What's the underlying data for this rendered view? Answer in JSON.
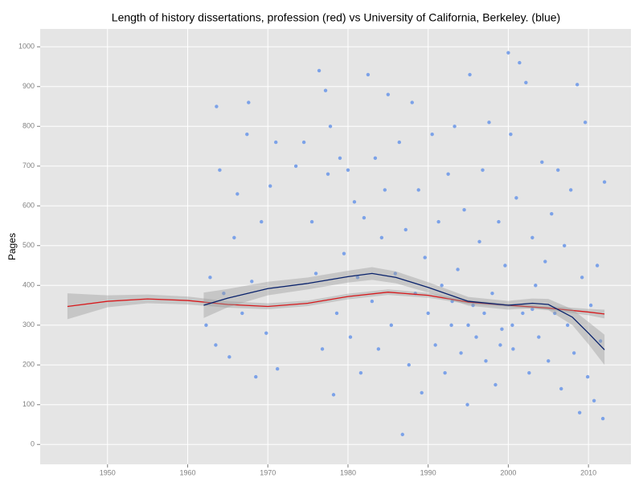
{
  "chart_data": {
    "type": "scatter",
    "title": "Length of history dissertations, profession (red) vs University of California, Berkeley. (blue)",
    "y_label": "Pages",
    "xlim": [
      1941.6,
      2015.3
    ],
    "ylim": [
      -50,
      1045
    ],
    "xticks": [
      1950,
      1960,
      1970,
      1980,
      1990,
      2000,
      2010
    ],
    "yticks": [
      0,
      100,
      200,
      300,
      400,
      500,
      600,
      700,
      800,
      900,
      1000
    ],
    "grid": true,
    "series": [
      {
        "type": "scatter",
        "color": "#7ca2e8",
        "x": [
          1962.3,
          1962.8,
          1963.5,
          1963.6,
          1964.0,
          1964.5,
          1965.2,
          1965.8,
          1966.2,
          1966.8,
          1967.4,
          1967.6,
          1968.0,
          1968.5,
          1969.2,
          1969.8,
          1970.3,
          1971.0,
          1971.2,
          1973.5,
          1974.5,
          1975.5,
          1976.0,
          1976.4,
          1976.8,
          1977.2,
          1977.5,
          1977.8,
          1978.2,
          1978.6,
          1979.0,
          1979.5,
          1980.0,
          1980.3,
          1980.8,
          1981.2,
          1981.6,
          1982.0,
          1982.5,
          1983.0,
          1983.4,
          1983.8,
          1984.2,
          1984.6,
          1985.0,
          1985.4,
          1985.9,
          1986.4,
          1986.8,
          1987.2,
          1987.6,
          1988.0,
          1988.4,
          1988.8,
          1989.2,
          1989.6,
          1990.0,
          1990.5,
          1990.9,
          1991.3,
          1991.7,
          1992.1,
          1992.5,
          1992.9,
          1993.3,
          1993.7,
          1994.1,
          1994.5,
          1994.9,
          1995.2,
          1995.6,
          1996.0,
          1996.4,
          1996.8,
          1997.2,
          1997.6,
          1998.0,
          1998.4,
          1998.8,
          1999.2,
          1999.6,
          2000.0,
          2000.3,
          2000.6,
          2001.0,
          2001.4,
          2001.8,
          2002.2,
          2002.6,
          2003.0,
          2003.4,
          2003.8,
          2004.2,
          2004.6,
          2005.0,
          2005.4,
          2005.8,
          2006.2,
          2006.6,
          2007.0,
          2007.4,
          2007.8,
          2008.2,
          2008.6,
          2008.9,
          2009.2,
          2009.6,
          2009.9,
          2010.3,
          2010.7,
          2011.1,
          2011.5,
          2011.8,
          2012.0,
          1995.0,
          1997.0,
          2000.5,
          2003.0,
          1993.0,
          1999.0
        ],
        "values": [
          300,
          420,
          250,
          850,
          690,
          380,
          220,
          520,
          630,
          330,
          780,
          860,
          410,
          170,
          560,
          280,
          650,
          760,
          190,
          700,
          760,
          560,
          430,
          940,
          240,
          890,
          680,
          800,
          125,
          330,
          720,
          480,
          690,
          270,
          610,
          420,
          180,
          570,
          930,
          360,
          720,
          240,
          520,
          640,
          880,
          300,
          430,
          760,
          25,
          540,
          200,
          860,
          380,
          640,
          130,
          470,
          330,
          780,
          250,
          560,
          400,
          180,
          680,
          300,
          800,
          440,
          230,
          590,
          100,
          930,
          350,
          270,
          510,
          690,
          210,
          810,
          380,
          150,
          560,
          290,
          450,
          985,
          780,
          240,
          620,
          960,
          330,
          910,
          180,
          520,
          400,
          270,
          710,
          460,
          210,
          580,
          330,
          690,
          140,
          500,
          300,
          640,
          230,
          905,
          80,
          420,
          810,
          170,
          350,
          110,
          450,
          260,
          65,
          660,
          300,
          330,
          300,
          340,
          360,
          250
        ]
      },
      {
        "type": "line",
        "color": "#d7191c",
        "x": [
          1945,
          1950,
          1955,
          1960,
          1965,
          1970,
          1975,
          1980,
          1985,
          1990,
          1995,
          2000,
          2005,
          2010,
          2012
        ],
        "values": [
          347,
          360,
          366,
          362,
          352,
          347,
          355,
          372,
          383,
          375,
          358,
          350,
          343,
          333,
          328
        ],
        "lower": [
          315,
          345,
          355,
          352,
          344,
          340,
          348,
          365,
          376,
          369,
          353,
          346,
          338,
          325,
          317
        ],
        "upper": [
          380,
          375,
          377,
          372,
          360,
          355,
          362,
          379,
          390,
          381,
          363,
          354,
          348,
          341,
          339
        ]
      },
      {
        "type": "line",
        "color": "#08216b",
        "x": [
          1962,
          1965,
          1970,
          1975,
          1980,
          1983,
          1986,
          1990,
          1995,
          2000,
          2003,
          2005,
          2008,
          2010,
          2012
        ],
        "values": [
          350,
          368,
          392,
          405,
          422,
          430,
          420,
          395,
          360,
          350,
          355,
          352,
          320,
          280,
          238
        ],
        "lower": [
          318,
          345,
          375,
          390,
          407,
          414,
          405,
          382,
          349,
          339,
          343,
          338,
          300,
          252,
          200
        ],
        "upper": [
          382,
          391,
          409,
          420,
          437,
          446,
          435,
          408,
          371,
          361,
          367,
          366,
          340,
          308,
          276
        ]
      }
    ]
  }
}
